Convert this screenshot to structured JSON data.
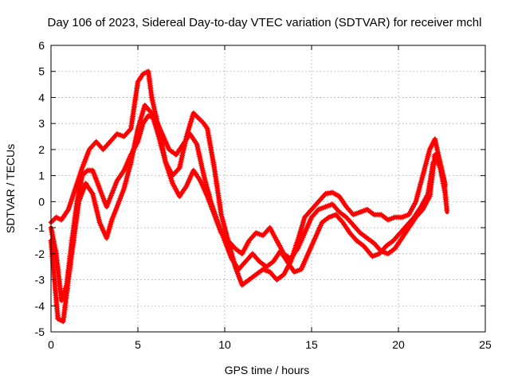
{
  "chart_data": {
    "type": "scatter",
    "title": "Day 106 of 2023, Sidereal Day-to-day VTEC variation (SDTVAR) for receiver mchl",
    "xlabel": "GPS time / hours",
    "ylabel": "SDTVAR / TECUs",
    "xlim": [
      0,
      25
    ],
    "ylim": [
      -5,
      6
    ],
    "xticks": [
      "0",
      "5",
      "10",
      "15",
      "20",
      "25"
    ],
    "yticks": [
      "-5",
      "-4",
      "-3",
      "-2",
      "-1",
      "0",
      "1",
      "2",
      "3",
      "4",
      "5",
      "6"
    ],
    "grid": true,
    "marker": "+",
    "color": "#ff0000",
    "series": [
      {
        "x": [
          0.0,
          0.3,
          0.6,
          1.0,
          1.4,
          1.8,
          2.2,
          2.6,
          3.0,
          3.4,
          3.8,
          4.2,
          4.6,
          5.0,
          5.3,
          5.6,
          5.8,
          6.2,
          6.6,
          7.0,
          7.4,
          7.8,
          8.2,
          8.5,
          8.8,
          9.0,
          9.4,
          9.8,
          10.2,
          10.6,
          11.0,
          11.4,
          11.8,
          12.2,
          12.6,
          13.0,
          13.4,
          13.8,
          14.2,
          14.6,
          15.0,
          15.4,
          15.8,
          16.2,
          16.6,
          17.0,
          17.4,
          17.8,
          18.2,
          18.6,
          19.0,
          19.4,
          19.8,
          20.2,
          20.6,
          21.0,
          21.4,
          21.8,
          22.1,
          22.4,
          22.7
        ],
        "y": [
          -0.8,
          -0.6,
          -0.7,
          -0.3,
          0.5,
          1.3,
          2.0,
          2.3,
          2.0,
          2.3,
          2.6,
          2.5,
          2.8,
          4.6,
          4.9,
          5.0,
          4.0,
          2.8,
          1.5,
          1.0,
          1.3,
          2.5,
          3.4,
          3.2,
          3.0,
          2.8,
          1.3,
          -0.5,
          -1.5,
          -2.5,
          -3.2,
          -3.0,
          -2.8,
          -2.6,
          -2.7,
          -3.0,
          -2.8,
          -2.3,
          -1.5,
          -0.6,
          -0.3,
          0.0,
          0.3,
          0.35,
          0.2,
          -0.2,
          -0.5,
          -0.4,
          -0.3,
          -0.5,
          -0.5,
          -0.7,
          -0.6,
          -0.6,
          -0.5,
          0.0,
          1.0,
          2.0,
          2.4,
          1.5,
          0.6
        ]
      },
      {
        "x": [
          0.0,
          0.2,
          0.4,
          0.7,
          1.0,
          1.3,
          1.6,
          2.0,
          2.4,
          2.8,
          3.2,
          3.5,
          3.8,
          4.2,
          4.6,
          5.0,
          5.4,
          5.8,
          6.2,
          6.6,
          7.0,
          7.4,
          7.8,
          8.2,
          8.6,
          9.0,
          9.4,
          9.8,
          10.2,
          10.6,
          11.0,
          11.4,
          11.8,
          12.2,
          12.6,
          13.0,
          13.4,
          13.8,
          14.2,
          14.6,
          15.0,
          15.4,
          15.8,
          16.2,
          16.6,
          17.0,
          17.4,
          17.8,
          18.2,
          18.6,
          19.0,
          19.4,
          19.8,
          20.2,
          20.6,
          21.0,
          21.4,
          21.8,
          22.1,
          22.4,
          22.7
        ],
        "y": [
          -1.5,
          -3.0,
          -4.5,
          -4.6,
          -3.0,
          -1.5,
          0.0,
          0.7,
          0.3,
          -0.8,
          -1.4,
          -0.7,
          -0.2,
          0.5,
          1.5,
          2.8,
          3.7,
          3.4,
          2.5,
          1.5,
          0.7,
          0.2,
          0.6,
          1.2,
          0.8,
          0.2,
          -0.5,
          -1.2,
          -1.5,
          -1.8,
          -2.0,
          -1.5,
          -1.2,
          -1.3,
          -1.0,
          -1.5,
          -2.0,
          -2.2,
          -1.8,
          -1.2,
          -0.6,
          -0.3,
          -0.2,
          -0.1,
          -0.4,
          -0.6,
          -0.9,
          -1.2,
          -1.4,
          -1.6,
          -1.9,
          -2.0,
          -1.8,
          -1.4,
          -1.0,
          -0.6,
          -0.3,
          0.2,
          1.8,
          1.3,
          0.3
        ]
      },
      {
        "x": [
          0.0,
          0.3,
          0.6,
          0.9,
          1.2,
          1.5,
          1.8,
          2.1,
          2.4,
          2.8,
          3.2,
          3.5,
          3.8,
          4.2,
          4.6,
          5.0,
          5.3,
          5.6,
          6.0,
          6.4,
          6.8,
          7.2,
          7.6,
          8.0,
          8.4,
          8.8,
          9.2,
          9.6,
          10.0,
          10.4,
          10.8,
          11.2,
          11.6,
          12.0,
          12.4,
          12.8,
          13.2,
          13.6,
          14.0,
          14.4,
          14.8,
          15.2,
          15.6,
          16.0,
          16.4,
          16.8,
          17.2,
          17.6,
          18.0,
          18.5,
          18.9,
          19.3,
          19.7,
          20.1,
          20.5,
          20.9,
          21.3,
          21.7,
          22.0,
          22.3,
          22.6,
          22.8
        ],
        "y": [
          -1.0,
          -2.0,
          -3.8,
          -3.2,
          -1.5,
          0.0,
          1.0,
          1.2,
          1.2,
          0.5,
          -0.2,
          0.3,
          0.8,
          1.2,
          1.8,
          2.3,
          3.0,
          3.3,
          3.2,
          2.6,
          2.0,
          1.8,
          2.2,
          2.6,
          2.2,
          1.0,
          0.0,
          -0.8,
          -1.5,
          -2.2,
          -2.6,
          -2.3,
          -2.0,
          -2.3,
          -2.5,
          -2.3,
          -1.9,
          -2.3,
          -2.7,
          -2.6,
          -2.0,
          -1.4,
          -0.8,
          -0.6,
          -0.5,
          -0.8,
          -1.2,
          -1.5,
          -1.7,
          -2.1,
          -2.0,
          -1.7,
          -1.5,
          -1.2,
          -0.9,
          -0.6,
          -0.2,
          0.3,
          1.5,
          1.7,
          0.9,
          -0.4
        ]
      }
    ]
  }
}
